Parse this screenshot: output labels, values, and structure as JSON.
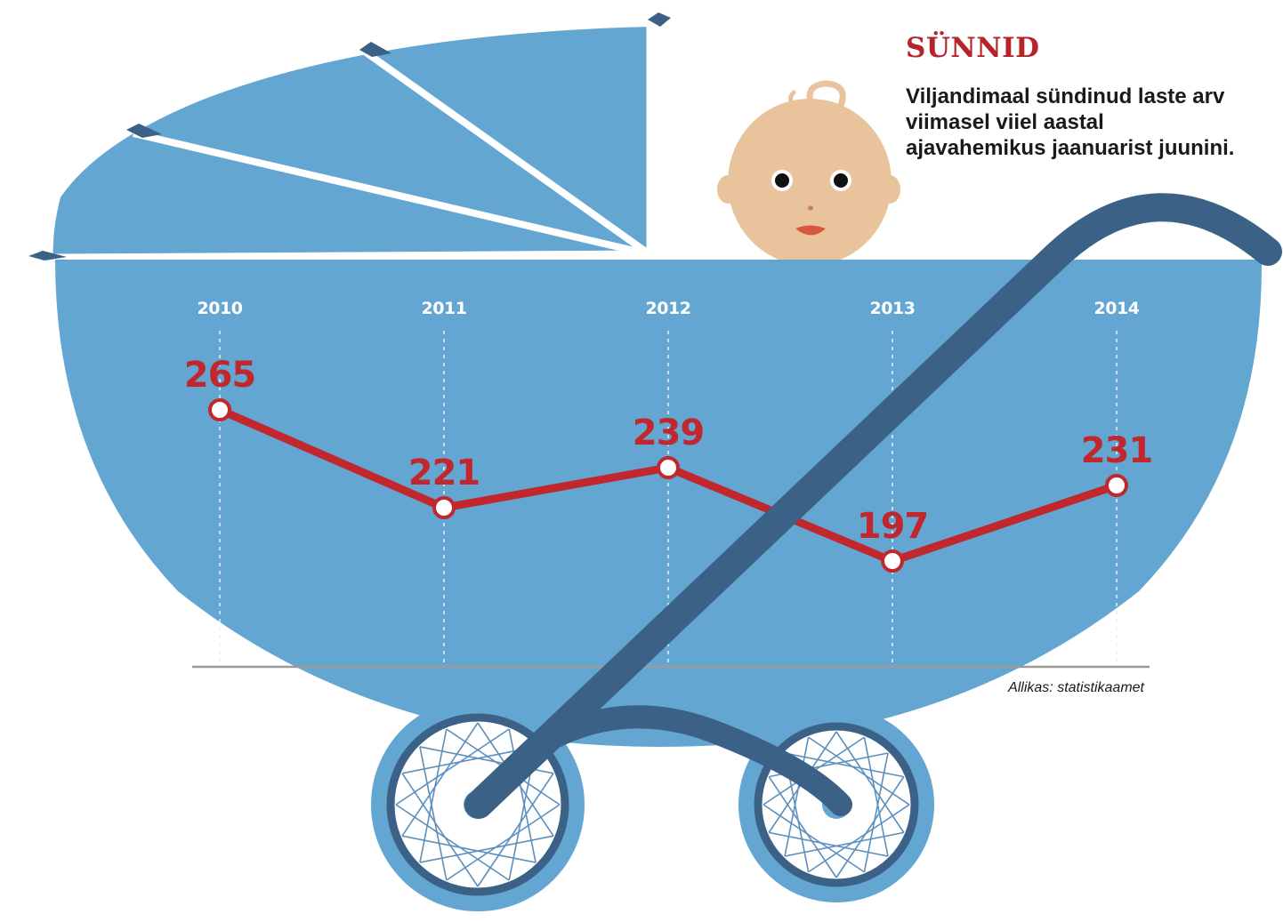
{
  "title": "SÜNNID",
  "subtitle_lines": [
    "Viljandimaal sündinud laste arv",
    "viimasel viiel aastal",
    "ajavahemikus jaanuarist juunini."
  ],
  "source": "Allikas: statistikaamet",
  "colors": {
    "pram_body": "#63a6d2",
    "pram_dark": "#3c6187",
    "line": "#c1272d",
    "accent_text": "#b5242b",
    "face": "#e9c39b"
  },
  "chart_data": {
    "type": "line",
    "title": "SÜNNID",
    "categories": [
      "2010",
      "2011",
      "2012",
      "2013",
      "2014"
    ],
    "values": [
      265,
      221,
      239,
      197,
      231
    ],
    "xlabel": "",
    "ylabel": "",
    "grid": true,
    "legend": "none"
  }
}
